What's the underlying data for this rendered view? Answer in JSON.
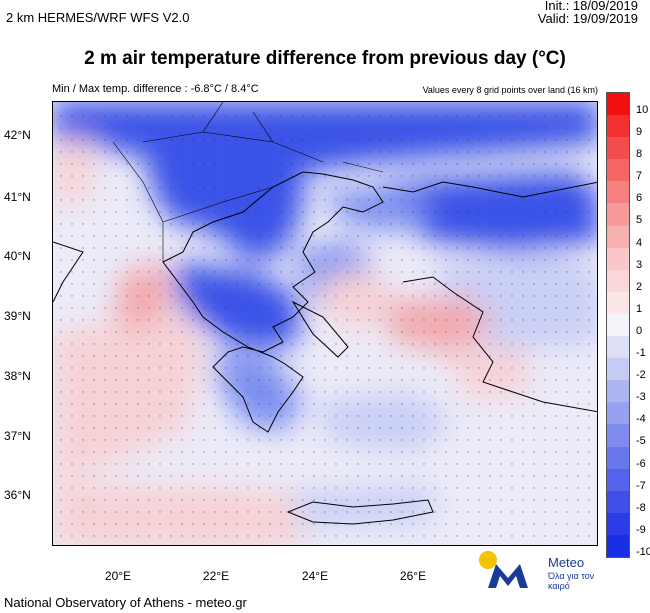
{
  "header": {
    "model": "2 km HERMES/WRF WFS V2.0",
    "init": "Init.:  18/09/2019",
    "valid": "Valid: 19/09/2019",
    "title": "2 m air temperature difference from previous day (°C)",
    "minmax": "Min / Max temp. difference : -6.8°C / 8.4°C",
    "note": "Values every 8 grid points over land (16 km)"
  },
  "map": {
    "latitude_labels": [
      "42°N",
      "41°N",
      "40°N",
      "39°N",
      "38°N",
      "37°N",
      "36°N"
    ],
    "longitude_labels": [
      "20°E",
      "22°E",
      "24°E",
      "26°E"
    ],
    "lat_range": [
      35.2,
      42.6
    ],
    "lon_range": [
      18.1,
      29.1
    ],
    "field_colors": {
      "strong_cool": "#3a52e8",
      "mid_cool": "#7b8ff0",
      "light_cool": "#c9cff6",
      "neutral": "#ecebf8",
      "light_warm": "#f6d2d6",
      "warm": "#f2a9ae",
      "coast": "#000000"
    }
  },
  "colorbar": {
    "levels": [
      "10",
      "9",
      "8",
      "7",
      "6",
      "5",
      "4",
      "3",
      "2",
      "1",
      "0",
      "-1",
      "-2",
      "-3",
      "-4",
      "-5",
      "-6",
      "-7",
      "-8",
      "-9",
      "-10"
    ],
    "colors": [
      "#f01010",
      "#f23030",
      "#f44c4c",
      "#f56666",
      "#f78080",
      "#f89a9a",
      "#f9b2b2",
      "#fac6c8",
      "#fad8da",
      "#fbe6e8",
      "#f3f3f9",
      "#dcdff6",
      "#c6cbf4",
      "#aeb6f2",
      "#98a1f0",
      "#808bee",
      "#6a77ec",
      "#5563ea",
      "#3f4fe8",
      "#2b3ce6",
      "#1a2ee4"
    ]
  },
  "footer": {
    "credit": "National Observatory of Athens - meteo.gr",
    "logo_name": "Meteo",
    "logo_tagline": "Όλα για τον καιρό",
    "logo_colors": {
      "sun": "#f5c400",
      "mark": "#1a3a9a"
    }
  }
}
